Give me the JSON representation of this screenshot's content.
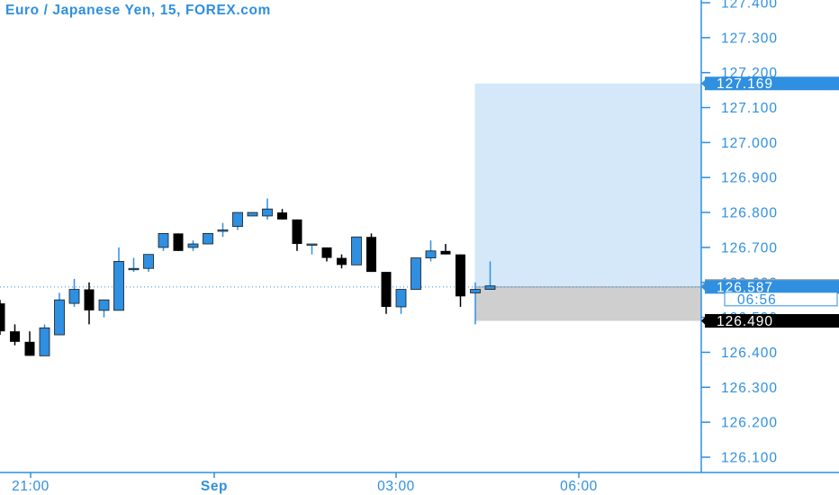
{
  "header": {
    "title": "Euro / Japanese Yen, 15, FOREX.com"
  },
  "colors": {
    "accent": "#2f8fe0",
    "up_fill": "#2f8fe0",
    "down_fill": "#000000",
    "target_zone": "#d4e8fa",
    "stop_zone": "#cfcfcf",
    "axis_line": "#2f8fe0"
  },
  "chart_data": {
    "type": "candlestick",
    "symbol": "Euro / Japanese Yen",
    "interval": "15",
    "source": "FOREX.com",
    "ylim": [
      126.06,
      127.46
    ],
    "price_ticks": [
      "126.100",
      "126.200",
      "126.300",
      "126.400",
      "126.500",
      "126.600",
      "126.700",
      "126.800",
      "126.900",
      "127.000",
      "127.100",
      "127.200",
      "127.300",
      "127.400"
    ],
    "time_labels": [
      "21:00",
      "Sep",
      "03:00",
      "06:00"
    ],
    "candles": [
      {
        "o": 126.54,
        "h": 126.55,
        "l": 126.45,
        "c": 126.46
      },
      {
        "o": 126.46,
        "h": 126.48,
        "l": 126.42,
        "c": 126.43
      },
      {
        "o": 126.43,
        "h": 126.46,
        "l": 126.39,
        "c": 126.39
      },
      {
        "o": 126.39,
        "h": 126.48,
        "l": 126.39,
        "c": 126.47
      },
      {
        "o": 126.45,
        "h": 126.57,
        "l": 126.45,
        "c": 126.55
      },
      {
        "o": 126.54,
        "h": 126.61,
        "l": 126.53,
        "c": 126.58
      },
      {
        "o": 126.58,
        "h": 126.6,
        "l": 126.48,
        "c": 126.52
      },
      {
        "o": 126.52,
        "h": 126.55,
        "l": 126.5,
        "c": 126.55
      },
      {
        "o": 126.52,
        "h": 126.7,
        "l": 126.52,
        "c": 126.66
      },
      {
        "o": 126.64,
        "h": 126.67,
        "l": 126.63,
        "c": 126.64
      },
      {
        "o": 126.64,
        "h": 126.68,
        "l": 126.63,
        "c": 126.68
      },
      {
        "o": 126.7,
        "h": 126.74,
        "l": 126.69,
        "c": 126.74
      },
      {
        "o": 126.74,
        "h": 126.74,
        "l": 126.69,
        "c": 126.69
      },
      {
        "o": 126.7,
        "h": 126.72,
        "l": 126.69,
        "c": 126.71
      },
      {
        "o": 126.71,
        "h": 126.74,
        "l": 126.71,
        "c": 126.74
      },
      {
        "o": 126.75,
        "h": 126.77,
        "l": 126.73,
        "c": 126.75
      },
      {
        "o": 126.76,
        "h": 126.8,
        "l": 126.75,
        "c": 126.8
      },
      {
        "o": 126.79,
        "h": 126.8,
        "l": 126.79,
        "c": 126.8
      },
      {
        "o": 126.79,
        "h": 126.84,
        "l": 126.78,
        "c": 126.81
      },
      {
        "o": 126.8,
        "h": 126.81,
        "l": 126.78,
        "c": 126.78
      },
      {
        "o": 126.78,
        "h": 126.78,
        "l": 126.69,
        "c": 126.71
      },
      {
        "o": 126.71,
        "h": 126.71,
        "l": 126.68,
        "c": 126.71
      },
      {
        "o": 126.7,
        "h": 126.7,
        "l": 126.66,
        "c": 126.67
      },
      {
        "o": 126.67,
        "h": 126.68,
        "l": 126.64,
        "c": 126.65
      },
      {
        "o": 126.65,
        "h": 126.73,
        "l": 126.65,
        "c": 126.73
      },
      {
        "o": 126.73,
        "h": 126.74,
        "l": 126.63,
        "c": 126.63
      },
      {
        "o": 126.63,
        "h": 126.63,
        "l": 126.51,
        "c": 126.53
      },
      {
        "o": 126.53,
        "h": 126.58,
        "l": 126.51,
        "c": 126.58
      },
      {
        "o": 126.58,
        "h": 126.67,
        "l": 126.58,
        "c": 126.67
      },
      {
        "o": 126.67,
        "h": 126.72,
        "l": 126.66,
        "c": 126.69
      },
      {
        "o": 126.69,
        "h": 126.71,
        "l": 126.68,
        "c": 126.68
      },
      {
        "o": 126.68,
        "h": 126.68,
        "l": 126.53,
        "c": 126.56
      },
      {
        "o": 126.57,
        "h": 126.6,
        "l": 126.48,
        "c": 126.58
      },
      {
        "o": 126.58,
        "h": 126.66,
        "l": 126.58,
        "c": 126.59
      }
    ],
    "position": {
      "entry": 126.587,
      "target": 127.169,
      "stop": 126.49,
      "start_index": 32
    },
    "current_price_line": 126.587,
    "price_badges": [
      {
        "text": "127.169",
        "value": 127.169,
        "style": "blue"
      },
      {
        "text": "126.590",
        "value": 126.59,
        "style": "gray"
      },
      {
        "text": "126.587",
        "value": 126.587,
        "style": "blue"
      },
      {
        "text": "06:56",
        "style": "timer"
      },
      {
        "text": "126.490",
        "value": 126.49,
        "style": "black"
      }
    ]
  }
}
